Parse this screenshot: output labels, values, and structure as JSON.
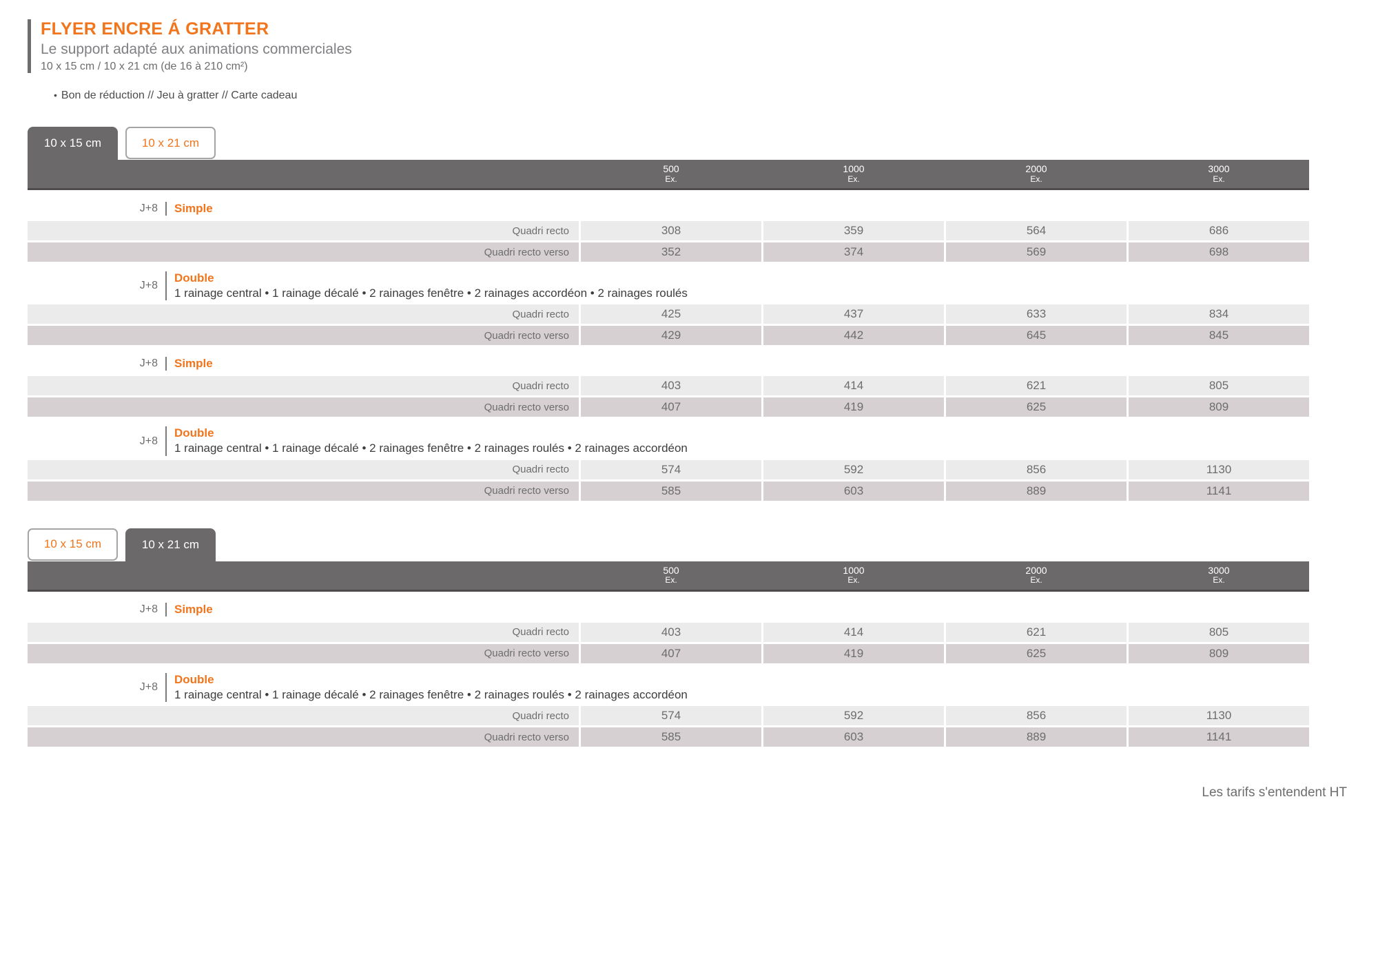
{
  "header": {
    "title": "FLYER ENCRE Á GRATTER",
    "subtitle": "Le support adapté aux animations commerciales",
    "formats": "10 x 15 cm / 10 x 21 cm (de 16 à 210 cm²)",
    "bullet_marker": "•",
    "bullet": "Bon de réduction // Jeu à gratter // Carte cadeau"
  },
  "quantity_headers": [
    {
      "qty": "500",
      "unit": "Ex."
    },
    {
      "qty": "1000",
      "unit": "Ex."
    },
    {
      "qty": "2000",
      "unit": "Ex."
    },
    {
      "qty": "3000",
      "unit": "Ex."
    }
  ],
  "tables": [
    {
      "name": "format-10x15",
      "tabs": [
        {
          "label": "10 x 15 cm",
          "active": true
        },
        {
          "label": "10 x 21 cm",
          "active": false
        }
      ],
      "sections": [
        {
          "delay": "J+8",
          "type": "Simple",
          "description": "",
          "rows": [
            {
              "label": "Quadri recto",
              "values": [
                "308",
                "359",
                "564",
                "686"
              ]
            },
            {
              "label": "Quadri recto verso",
              "values": [
                "352",
                "374",
                "569",
                "698"
              ]
            }
          ]
        },
        {
          "delay": "J+8",
          "type": "Double",
          "description": "1 rainage central  •  1 rainage décalé  •  2 rainages fenêtre  •  2 rainages accordéon  •  2 rainages roulés",
          "rows": [
            {
              "label": "Quadri recto",
              "values": [
                "425",
                "437",
                "633",
                "834"
              ]
            },
            {
              "label": "Quadri recto verso",
              "values": [
                "429",
                "442",
                "645",
                "845"
              ]
            }
          ]
        },
        {
          "delay": "J+8",
          "type": "Simple",
          "description": "",
          "rows": [
            {
              "label": "Quadri recto",
              "values": [
                "403",
                "414",
                "621",
                "805"
              ]
            },
            {
              "label": "Quadri recto verso",
              "values": [
                "407",
                "419",
                "625",
                "809"
              ]
            }
          ]
        },
        {
          "delay": "J+8",
          "type": "Double",
          "description": "1 rainage central  •  1 rainage décalé  •  2 rainages fenêtre  •  2 rainages roulés  •  2 rainages accordéon",
          "rows": [
            {
              "label": "Quadri recto",
              "values": [
                "574",
                "592",
                "856",
                "1130"
              ]
            },
            {
              "label": "Quadri recto verso",
              "values": [
                "585",
                "603",
                "889",
                "1141"
              ]
            }
          ]
        }
      ]
    },
    {
      "name": "format-10x21",
      "tabs": [
        {
          "label": "10 x 15 cm",
          "active": false
        },
        {
          "label": "10 x 21 cm",
          "active": true
        }
      ],
      "sections": [
        {
          "delay": "J+8",
          "type": "Simple",
          "description": "",
          "rows": [
            {
              "label": "Quadri recto",
              "values": [
                "403",
                "414",
                "621",
                "805"
              ]
            },
            {
              "label": "Quadri recto verso",
              "values": [
                "407",
                "419",
                "625",
                "809"
              ]
            }
          ]
        },
        {
          "delay": "J+8",
          "type": "Double",
          "description": "1 rainage central  •  1 rainage décalé  •  2 rainages fenêtre  •  2 rainages roulés  •  2 rainages accordéon",
          "rows": [
            {
              "label": "Quadri recto",
              "values": [
                "574",
                "592",
                "856",
                "1130"
              ]
            },
            {
              "label": "Quadri recto verso",
              "values": [
                "585",
                "603",
                "889",
                "1141"
              ]
            }
          ]
        }
      ]
    }
  ],
  "footer": {
    "note": "Les tarifs s'entendent HT"
  },
  "colors": {
    "accent": "#f0751c",
    "band": "#6c696a",
    "row_light": "#ebebeb",
    "row_shade": "#d6d0d2"
  }
}
